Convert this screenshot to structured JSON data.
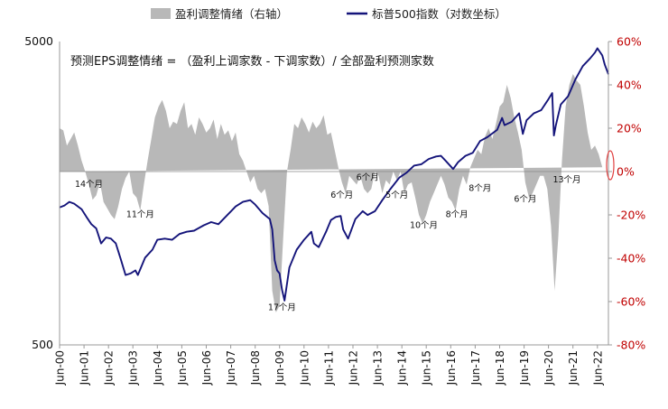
{
  "chart_data": {
    "type": "area+line",
    "legend": [
      {
        "name": "盈利调整情绪（右轴）",
        "color": "#b8b8b8",
        "kind": "area"
      },
      {
        "name": "标普500指数（对数坐标）",
        "color": "#14147a",
        "kind": "line"
      }
    ],
    "annotation": "预测EPS调整情绪 = （盈利上调家数 - 下调家数）/ 全部盈利预测家数",
    "left_axis": {
      "scale": "log",
      "range": [
        500,
        5000
      ],
      "ticks": [
        "5000",
        "500"
      ]
    },
    "right_axis": {
      "range": [
        -0.8,
        0.6
      ],
      "ticks": [
        "60%",
        "40%",
        "20%",
        "0%",
        "-20%",
        "-40%",
        "-60%",
        "-80%"
      ]
    },
    "x_tick_labels": [
      "Jun-00",
      "Jun-01",
      "Jun-02",
      "Jun-03",
      "Jun-04",
      "Jun-05",
      "Jun-06",
      "Jun-07",
      "Jun-08",
      "Jun-09",
      "Jun-10",
      "Jun-11",
      "Jun-12",
      "Jun-13",
      "Jun-14",
      "Jun-15",
      "Jun-16",
      "Jun-17",
      "Jun-18",
      "Jun-19",
      "Jun-20",
      "Jun-21",
      "Jun-22"
    ],
    "period_labels": [
      {
        "text": "14个月",
        "t": 2001.2,
        "pct": -0.07
      },
      {
        "text": "11个月",
        "t": 2003.3,
        "pct": -0.21
      },
      {
        "text": "17个月",
        "t": 2009.1,
        "pct": -0.64
      },
      {
        "text": "6个月",
        "t": 2011.55,
        "pct": -0.12
      },
      {
        "text": "6个月",
        "t": 2012.6,
        "pct": -0.04
      },
      {
        "text": "5个月",
        "t": 2013.8,
        "pct": -0.12
      },
      {
        "text": "10个月",
        "t": 2014.9,
        "pct": -0.26
      },
      {
        "text": "8个月",
        "t": 2016.25,
        "pct": -0.21
      },
      {
        "text": "8个月",
        "t": 2017.2,
        "pct": -0.09
      },
      {
        "text": "6个月",
        "t": 2019.05,
        "pct": -0.14
      },
      {
        "text": "13个月",
        "t": 2020.75,
        "pct": -0.05
      }
    ],
    "sp500": {
      "t": [
        2000.0,
        2000.2,
        2000.4,
        2000.6,
        2000.9,
        2001.1,
        2001.3,
        2001.5,
        2001.7,
        2001.9,
        2002.1,
        2002.3,
        2002.5,
        2002.7,
        2002.9,
        2003.1,
        2003.2,
        2003.5,
        2003.8,
        2004.0,
        2004.3,
        2004.6,
        2004.9,
        2005.2,
        2005.5,
        2005.9,
        2006.2,
        2006.5,
        2006.9,
        2007.2,
        2007.5,
        2007.8,
        2008.0,
        2008.3,
        2008.6,
        2008.7,
        2008.8,
        2008.9,
        2009.0,
        2009.1,
        2009.2,
        2009.4,
        2009.7,
        2010.0,
        2010.3,
        2010.4,
        2010.6,
        2010.9,
        2011.1,
        2011.3,
        2011.5,
        2011.6,
        2011.8,
        2012.1,
        2012.4,
        2012.6,
        2012.9,
        2013.2,
        2013.5,
        2013.9,
        2014.2,
        2014.5,
        2014.8,
        2015.1,
        2015.4,
        2015.6,
        2015.8,
        2016.1,
        2016.3,
        2016.6,
        2016.9,
        2017.2,
        2017.5,
        2017.9,
        2018.1,
        2018.2,
        2018.5,
        2018.8,
        2018.95,
        2019.1,
        2019.4,
        2019.7,
        2020.0,
        2020.15,
        2020.22,
        2020.3,
        2020.5,
        2020.8,
        2021.1,
        2021.4,
        2021.7,
        2021.9,
        2022.0,
        2022.2,
        2022.3,
        2022.45
      ],
      "v": [
        1420,
        1440,
        1480,
        1460,
        1400,
        1320,
        1250,
        1210,
        1080,
        1130,
        1120,
        1080,
        960,
        850,
        860,
        880,
        850,
        970,
        1030,
        1110,
        1120,
        1110,
        1160,
        1180,
        1190,
        1240,
        1270,
        1250,
        1350,
        1430,
        1480,
        1500,
        1450,
        1360,
        1300,
        1200,
        950,
        880,
        860,
        760,
        700,
        900,
        1030,
        1110,
        1180,
        1080,
        1050,
        1180,
        1290,
        1320,
        1330,
        1200,
        1120,
        1300,
        1380,
        1340,
        1380,
        1500,
        1620,
        1780,
        1850,
        1950,
        1970,
        2050,
        2090,
        2100,
        2020,
        1900,
        2000,
        2100,
        2150,
        2350,
        2420,
        2560,
        2800,
        2650,
        2720,
        2900,
        2480,
        2750,
        2900,
        2970,
        3230,
        3380,
        2450,
        2650,
        3100,
        3300,
        3750,
        4150,
        4400,
        4600,
        4750,
        4500,
        4200,
        3900
      ]
    },
    "eps_revision": {
      "t": [
        2000.0,
        2000.15,
        2000.3,
        2000.45,
        2000.6,
        2000.75,
        2000.9,
        2001.05,
        2001.2,
        2001.35,
        2001.5,
        2001.65,
        2001.8,
        2001.95,
        2002.1,
        2002.25,
        2002.4,
        2002.55,
        2002.7,
        2002.85,
        2003.0,
        2003.15,
        2003.3,
        2003.45,
        2003.6,
        2003.75,
        2003.9,
        2004.05,
        2004.2,
        2004.35,
        2004.5,
        2004.65,
        2004.8,
        2004.95,
        2005.1,
        2005.25,
        2005.4,
        2005.55,
        2005.7,
        2005.85,
        2006.0,
        2006.15,
        2006.3,
        2006.45,
        2006.6,
        2006.75,
        2006.9,
        2007.05,
        2007.2,
        2007.35,
        2007.5,
        2007.65,
        2007.8,
        2007.95,
        2008.1,
        2008.25,
        2008.4,
        2008.55,
        2008.7,
        2008.85,
        2009.0,
        2009.15,
        2009.3,
        2009.45,
        2009.6,
        2009.75,
        2009.9,
        2010.05,
        2010.2,
        2010.35,
        2010.5,
        2010.65,
        2010.8,
        2010.95,
        2011.1,
        2011.25,
        2011.4,
        2011.55,
        2011.7,
        2011.85,
        2012.0,
        2012.15,
        2012.3,
        2012.45,
        2012.6,
        2012.75,
        2012.9,
        2013.05,
        2013.2,
        2013.35,
        2013.5,
        2013.65,
        2013.8,
        2013.95,
        2014.1,
        2014.25,
        2014.4,
        2014.55,
        2014.7,
        2014.85,
        2015.0,
        2015.15,
        2015.3,
        2015.45,
        2015.6,
        2015.75,
        2015.9,
        2016.05,
        2016.2,
        2016.35,
        2016.5,
        2016.65,
        2016.8,
        2016.95,
        2017.1,
        2017.25,
        2017.4,
        2017.55,
        2017.7,
        2017.85,
        2018.0,
        2018.15,
        2018.3,
        2018.45,
        2018.6,
        2018.75,
        2018.9,
        2019.05,
        2019.2,
        2019.35,
        2019.5,
        2019.65,
        2019.8,
        2019.95,
        2020.1,
        2020.25,
        2020.4,
        2020.55,
        2020.7,
        2020.85,
        2021.0,
        2021.15,
        2021.3,
        2021.45,
        2021.6,
        2021.75,
        2021.9,
        2022.05,
        2022.2,
        2022.35,
        2022.45
      ],
      "v": [
        0.2,
        0.19,
        0.12,
        0.15,
        0.18,
        0.12,
        0.05,
        0.0,
        -0.06,
        -0.13,
        -0.11,
        -0.05,
        -0.14,
        -0.17,
        -0.2,
        -0.22,
        -0.16,
        -0.08,
        -0.03,
        0.0,
        -0.1,
        -0.12,
        -0.18,
        -0.06,
        0.05,
        0.15,
        0.25,
        0.3,
        0.33,
        0.28,
        0.2,
        0.23,
        0.22,
        0.28,
        0.32,
        0.2,
        0.22,
        0.17,
        0.25,
        0.22,
        0.18,
        0.2,
        0.24,
        0.15,
        0.22,
        0.17,
        0.19,
        0.14,
        0.18,
        0.08,
        0.05,
        0.0,
        -0.05,
        -0.02,
        -0.08,
        -0.1,
        -0.08,
        -0.16,
        -0.55,
        -0.65,
        -0.62,
        -0.3,
        0.0,
        0.1,
        0.22,
        0.2,
        0.25,
        0.22,
        0.18,
        0.23,
        0.2,
        0.22,
        0.26,
        0.17,
        0.18,
        0.1,
        0.02,
        -0.05,
        -0.1,
        -0.02,
        -0.04,
        -0.06,
        -0.02,
        -0.08,
        -0.1,
        -0.08,
        0.0,
        -0.02,
        -0.1,
        -0.04,
        -0.06,
        0.0,
        -0.04,
        0.0,
        -0.1,
        -0.06,
        -0.05,
        -0.12,
        -0.2,
        -0.24,
        -0.2,
        -0.14,
        -0.1,
        -0.06,
        -0.02,
        -0.06,
        -0.12,
        -0.14,
        -0.18,
        -0.08,
        -0.02,
        -0.06,
        0.02,
        0.06,
        0.1,
        0.08,
        0.16,
        0.2,
        0.15,
        0.22,
        0.3,
        0.32,
        0.4,
        0.34,
        0.25,
        0.18,
        0.1,
        -0.05,
        -0.12,
        -0.1,
        -0.06,
        -0.02,
        -0.02,
        -0.08,
        -0.25,
        -0.55,
        -0.3,
        0.05,
        0.3,
        0.4,
        0.45,
        0.42,
        0.4,
        0.3,
        0.18,
        0.1,
        0.12,
        0.08,
        0.02
      ]
    }
  }
}
